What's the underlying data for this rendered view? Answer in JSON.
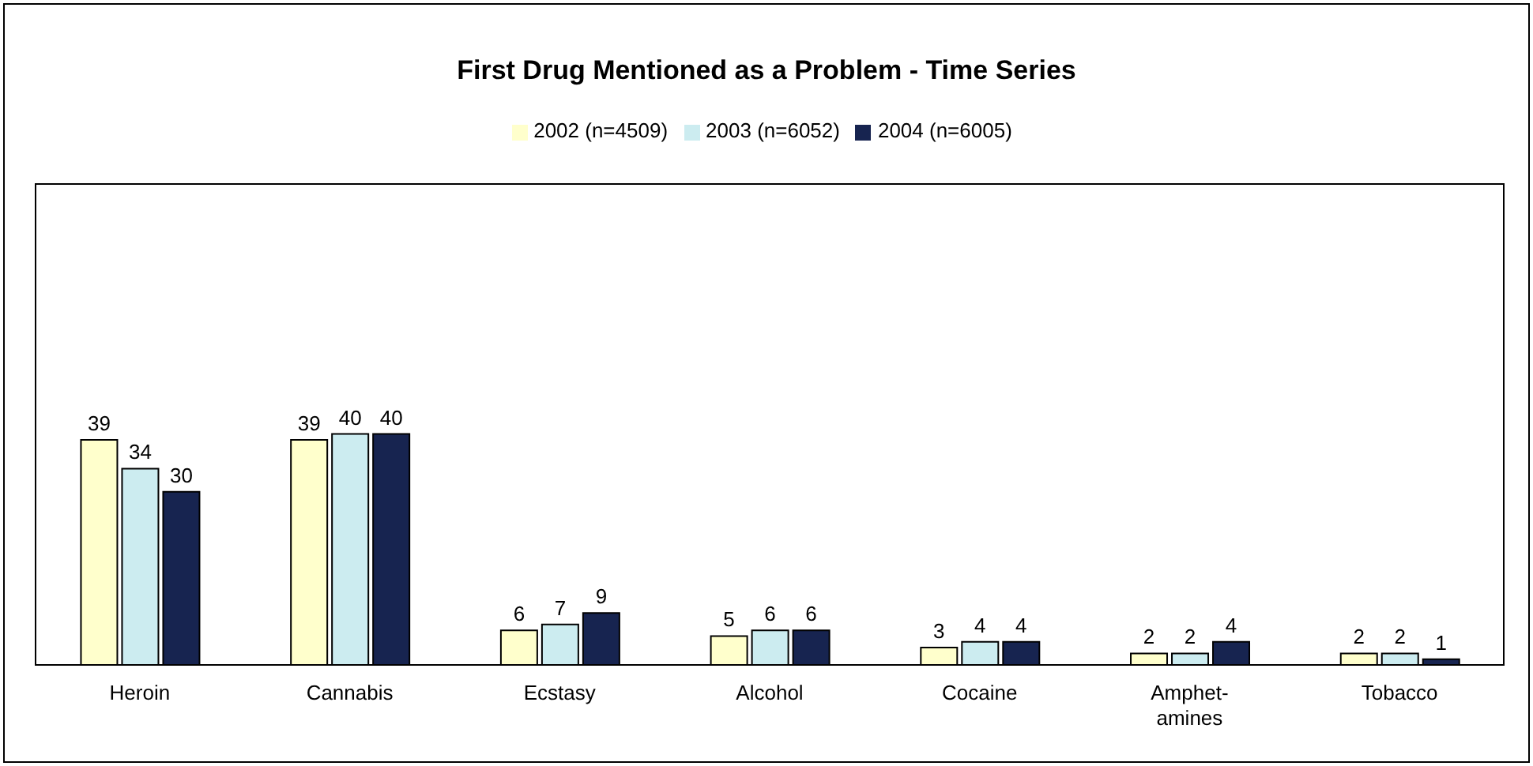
{
  "chart_data": {
    "type": "bar",
    "title": "First Drug Mentioned as a Problem - Time Series",
    "categories": [
      "Heroin",
      "Cannabis",
      "Ecstasy",
      "Alcohol",
      "Cocaine",
      "Amphet-\namines",
      "Tobacco"
    ],
    "series": [
      {
        "name": "2002 (n=4509)",
        "color": "#ffffcc",
        "values": [
          39,
          39,
          6,
          5,
          3,
          2,
          2
        ]
      },
      {
        "name": "2003 (n=6052)",
        "color": "#ccecf0",
        "values": [
          34,
          40,
          7,
          6,
          4,
          2,
          2
        ]
      },
      {
        "name": "2004 (n=6005)",
        "color": "#172450",
        "values": [
          30,
          40,
          9,
          6,
          4,
          4,
          1
        ]
      }
    ],
    "data_labels": true,
    "legend": "top",
    "grid": false
  }
}
